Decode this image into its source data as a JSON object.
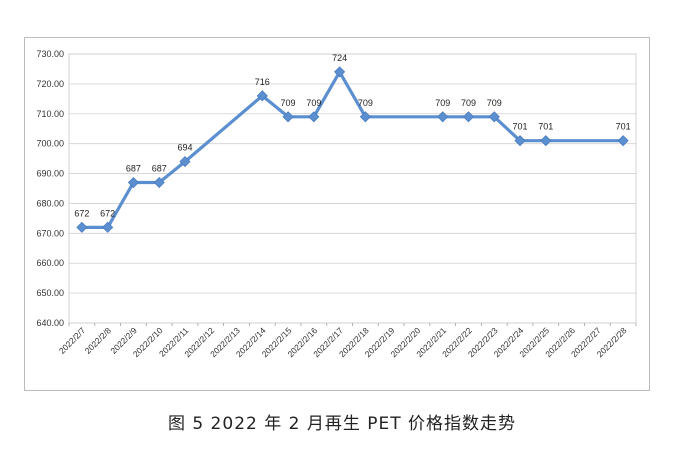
{
  "chart_data": {
    "type": "line",
    "title": "",
    "xlabel": "",
    "ylabel": "",
    "ylim": [
      640,
      730
    ],
    "y_ticks": [
      "640.00",
      "650.00",
      "660.00",
      "670.00",
      "680.00",
      "690.00",
      "700.00",
      "710.00",
      "720.00",
      "730.00"
    ],
    "grid": true,
    "legend": "none",
    "line_color": "#5b8fd0",
    "categories": [
      "2022/2/7",
      "2022/2/8",
      "2022/2/9",
      "2022/2/10",
      "2022/2/11",
      "2022/2/12",
      "2022/2/13",
      "2022/2/14",
      "2022/2/15",
      "2022/2/16",
      "2022/2/17",
      "2022/2/18",
      "2022/2/19",
      "2022/2/20",
      "2022/2/21",
      "2022/2/22",
      "2022/2/23",
      "2022/2/24",
      "2022/2/25",
      "2022/2/26",
      "2022/2/27",
      "2022/2/28"
    ],
    "series": [
      {
        "values": [
          672,
          672,
          687,
          687,
          694,
          null,
          null,
          716,
          709,
          709,
          724,
          709,
          null,
          null,
          709,
          709,
          709,
          701,
          701,
          null,
          null,
          701
        ],
        "data_labels": [
          "672",
          "672",
          "687",
          "687",
          "694",
          "",
          "",
          "716",
          "709",
          "709",
          "724",
          "709",
          "",
          "",
          "709",
          "709",
          "709",
          "701",
          "701",
          "",
          "",
          "701"
        ]
      }
    ]
  },
  "caption": "图 5  2022 年 2 月再生 PET 价格指数走势"
}
